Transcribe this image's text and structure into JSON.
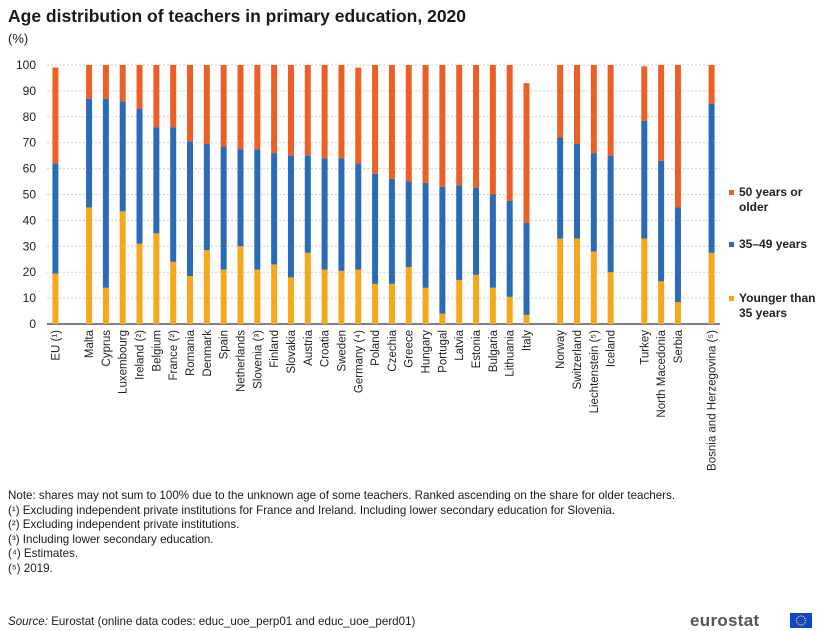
{
  "chart_data": {
    "type": "bar",
    "stacked": true,
    "title": "Age distribution of teachers in primary education, 2020",
    "unit": "(%)",
    "ylim": [
      0,
      100
    ],
    "yticks": [
      0,
      10,
      20,
      30,
      40,
      50,
      60,
      70,
      80,
      90,
      100
    ],
    "grid": true,
    "legend_position": "right",
    "categories": [
      "EU (¹)",
      "Malta",
      "Cyprus",
      "Luxembourg",
      "Ireland (²)",
      "Belgium",
      "France (²)",
      "Romania",
      "Denmark",
      "Spain",
      "Netherlands",
      "Slovenia (³)",
      "Finland",
      "Slovakia",
      "Austria",
      "Croatia",
      "Sweden",
      "Germany (⁴)",
      "Poland",
      "Czechia",
      "Greece",
      "Hungary",
      "Portugal",
      "Latvia",
      "Estonia",
      "Bulgaria",
      "Lithuania",
      "Italy",
      "Norway",
      "Switzerland",
      "Liechtenstein (⁵)",
      "Iceland",
      "Turkey",
      "North Macedonia",
      "Serbia",
      "Bosnia and Herzegovina (⁵)"
    ],
    "groups": [
      1,
      27,
      4,
      3,
      1
    ],
    "series": [
      {
        "name": "Younger than 35 years",
        "color": "#f5a81c",
        "values": [
          19.5,
          45,
          14,
          43.5,
          31,
          35,
          24,
          18.5,
          28.5,
          21,
          30,
          21,
          23,
          18,
          27.5,
          21,
          20.5,
          21,
          15.5,
          15.5,
          22,
          14,
          4,
          17,
          19,
          14,
          10.5,
          3.5,
          33,
          33,
          28,
          20,
          33,
          16.5,
          8.5,
          27.5
        ]
      },
      {
        "name": "35–49 years",
        "color": "#2a6bb5",
        "values": [
          42.5,
          42,
          73,
          42.5,
          52,
          41,
          52,
          52,
          41,
          47.5,
          37.5,
          46.5,
          43,
          47,
          37.5,
          43,
          43.5,
          41,
          42.5,
          40.5,
          33,
          40.5,
          49,
          36.5,
          33.5,
          36,
          37,
          35.5,
          39,
          36.5,
          38,
          45,
          45.5,
          46.5,
          36.5,
          57.5
        ]
      },
      {
        "name": "50 years or older",
        "color": "#ec6025",
        "values": [
          37,
          13,
          13,
          14,
          17,
          24,
          24,
          29.5,
          30.5,
          31.5,
          32.5,
          32.5,
          34,
          35,
          35,
          36,
          36,
          37,
          42,
          44,
          45,
          45.5,
          47,
          46.5,
          47.5,
          50,
          52.5,
          54,
          28,
          30.5,
          34,
          35,
          21,
          37,
          55,
          15
        ]
      }
    ]
  },
  "notes": [
    "Note: shares may not sum to 100% due to the unknown  age of some teachers. Ranked ascending on the share for older teachers.",
    "(¹) Excluding independent private institutions for France and Ireland. Including lower secondary education for Slovenia.",
    "(²) Excluding independent private institutions.",
    "(³) Including  lower secondary education.",
    "(⁴) Estimates.",
    "(⁵) 2019."
  ],
  "source": {
    "label": "Source:",
    "text": " Eurostat (online data codes: educ_uoe_perp01 and educ_uoe_perd01)"
  },
  "logo": "eurostat",
  "legend_items": [
    {
      "label_lines": [
        "50 years or",
        "older"
      ],
      "color": "#ec6025"
    },
    {
      "label_lines": [
        "35–49 years"
      ],
      "color": "#2a6bb5"
    },
    {
      "label_lines": [
        "Younger than",
        "35 years"
      ],
      "color": "#f5a81c"
    }
  ]
}
